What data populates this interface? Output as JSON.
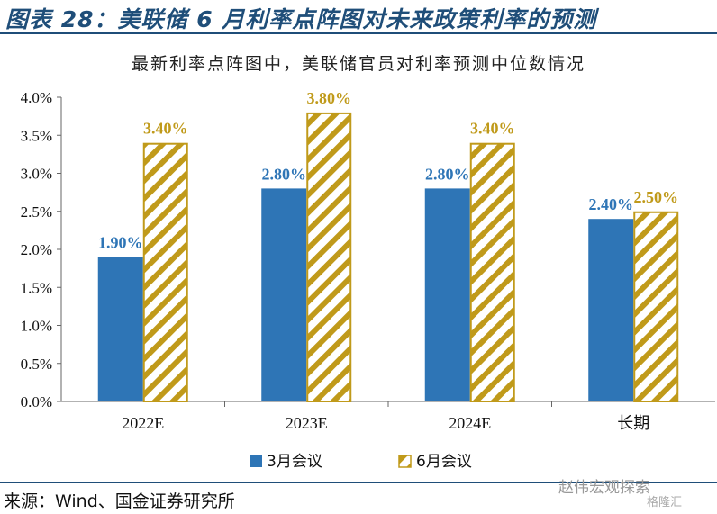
{
  "title": "图表 28：美联储 6 月利率点阵图对未来政策利率的预测",
  "source": "来源：Wind、国金证券研究所",
  "watermark": "赵伟宏观探索",
  "watermark2": "格隆汇",
  "colors": {
    "series1": "#2e75b6",
    "series2": "#c09a1a",
    "title": "#1f4e79"
  },
  "chart_data": {
    "type": "bar",
    "title": "最新利率点阵图中，美联储官员对利率预测中位数情况",
    "categories": [
      "2022E",
      "2023E",
      "2024E",
      "长期"
    ],
    "series": [
      {
        "name": "3月会议",
        "values": [
          1.9,
          2.8,
          2.8,
          2.4
        ],
        "labels": [
          "1.90%",
          "2.80%",
          "2.80%",
          "2.40%"
        ]
      },
      {
        "name": "6月会议",
        "values": [
          3.4,
          3.8,
          3.4,
          2.5
        ],
        "labels": [
          "3.40%",
          "3.80%",
          "3.40%",
          "2.50%"
        ]
      }
    ],
    "ylim": [
      0,
      4
    ],
    "yticks": [
      "0.0%",
      "0.5%",
      "1.0%",
      "1.5%",
      "2.0%",
      "2.5%",
      "3.0%",
      "3.5%",
      "4.0%"
    ],
    "legend_position": "bottom",
    "grid": false
  }
}
